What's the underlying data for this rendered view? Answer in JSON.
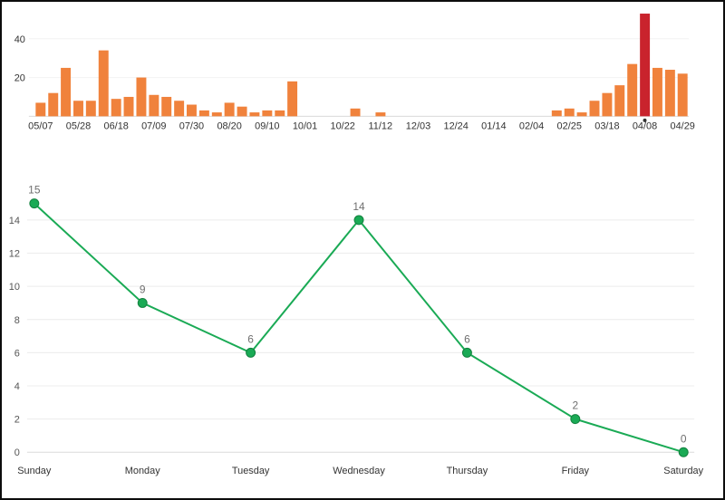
{
  "page": {
    "background": "#ffffff",
    "frame_color": "#0d0d0d"
  },
  "chart_data": [
    {
      "type": "bar",
      "name": "commits-per-week",
      "x_tick_labels": [
        "05/07",
        "05/28",
        "06/18",
        "07/09",
        "07/30",
        "08/20",
        "09/10",
        "10/01",
        "10/22",
        "11/12",
        "12/03",
        "12/24",
        "01/14",
        "02/04",
        "02/25",
        "03/18",
        "04/08",
        "04/29"
      ],
      "tick_every": 3,
      "values": [
        7,
        12,
        25,
        8,
        8,
        34,
        9,
        10,
        20,
        11,
        10,
        8,
        6,
        3,
        2,
        7,
        5,
        2,
        3,
        3,
        18,
        0,
        0,
        0,
        0,
        4,
        0,
        2,
        0,
        0,
        0,
        0,
        0,
        0,
        0,
        0,
        0,
        0,
        0,
        0,
        0,
        3,
        4,
        2,
        8,
        12,
        16,
        27,
        53,
        25,
        24,
        22
      ],
      "highlight_index": 48,
      "selected_x_label": "04/08",
      "y_ticks": [
        20,
        40
      ],
      "ylim": [
        0,
        55
      ],
      "bar_color": "#f0823c",
      "highlight_color": "#c9232d",
      "axis_label_color": "#333333",
      "grid_color": "#f2f2f2",
      "baseline_color": "#d9d9d9",
      "legend": "none"
    },
    {
      "type": "line",
      "name": "commits-per-weekday",
      "categories": [
        "Sunday",
        "Monday",
        "Tuesday",
        "Wednesday",
        "Thursday",
        "Friday",
        "Saturday"
      ],
      "values": [
        15,
        9,
        6,
        14,
        6,
        2,
        0
      ],
      "y_ticks": [
        0,
        2,
        4,
        6,
        8,
        10,
        12,
        14
      ],
      "ylim": [
        0,
        15
      ],
      "line_color": "#1aaa55",
      "marker_color": "#1aaa55",
      "marker_stroke": "#13813f",
      "data_label_color": "#6f6f6f",
      "y_axis_label_color": "#555555",
      "x_axis_label_color": "#333333",
      "grid_color": "#ececec",
      "baseline_color": "#dcdcdc",
      "legend": "none"
    }
  ]
}
